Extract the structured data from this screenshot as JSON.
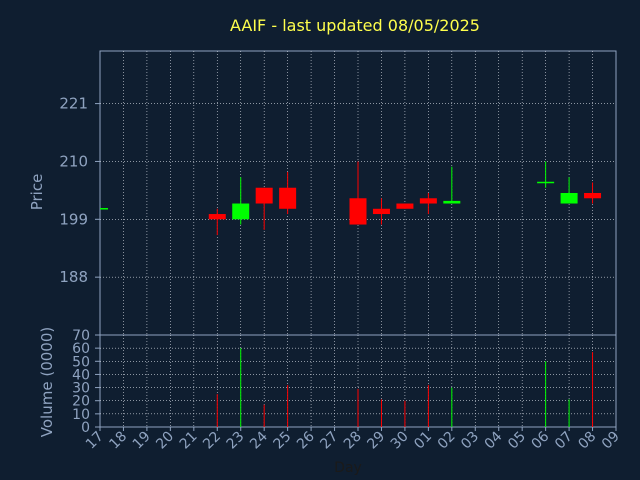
{
  "chart_data": {
    "type": "candlestick",
    "title": "AAIF - last updated 08/05/2025",
    "xlabel": "Day",
    "price_panel": {
      "ylabel": "Price",
      "yticks": [
        188,
        199,
        210,
        221
      ],
      "ylim": [
        177,
        231
      ],
      "grid": true
    },
    "volume_panel": {
      "ylabel": "Volume (0000)",
      "yticks": [
        0,
        10,
        20,
        30,
        40,
        50,
        60,
        70
      ],
      "ylim": [
        0,
        70
      ],
      "grid": true
    },
    "x_tick_labels": [
      "17",
      "18",
      "19",
      "20",
      "21",
      "22",
      "23",
      "24",
      "25",
      "26",
      "27",
      "28",
      "29",
      "30",
      "01",
      "02",
      "03",
      "04",
      "05",
      "06",
      "07",
      "08",
      "09"
    ],
    "colors": {
      "up": "#00ff00",
      "down": "#ff0000",
      "title": "#ffff4d",
      "axis_text": "#8fa3c0",
      "grid": "#d8dde6",
      "background": "#0f1e30"
    },
    "candles": [
      {
        "day": "17",
        "open": 201.0,
        "high": 201.0,
        "low": 201.0,
        "close": 201.0,
        "volume": 0
      },
      {
        "day": "22",
        "open": 200.0,
        "high": 201.0,
        "low": 196.0,
        "close": 199.0,
        "volume": 25
      },
      {
        "day": "23",
        "open": 199.0,
        "high": 207.0,
        "low": 198.0,
        "close": 202.0,
        "volume": 60
      },
      {
        "day": "24",
        "open": 205.0,
        "high": 205.0,
        "low": 197.0,
        "close": 202.0,
        "volume": 17
      },
      {
        "day": "25",
        "open": 205.0,
        "high": 208.0,
        "low": 200.0,
        "close": 201.0,
        "volume": 32
      },
      {
        "day": "28",
        "open": 203.0,
        "high": 210.0,
        "low": 198.0,
        "close": 198.0,
        "volume": 29
      },
      {
        "day": "29",
        "open": 201.0,
        "high": 203.0,
        "low": 198.0,
        "close": 200.0,
        "volume": 21
      },
      {
        "day": "30",
        "open": 202.0,
        "high": 202.0,
        "low": 201.0,
        "close": 201.0,
        "volume": 20
      },
      {
        "day": "01",
        "open": 203.0,
        "high": 204.0,
        "low": 200.0,
        "close": 202.0,
        "volume": 32
      },
      {
        "day": "02",
        "open": 202.0,
        "high": 209.0,
        "low": 202.0,
        "close": 202.5,
        "volume": 30
      },
      {
        "day": "06",
        "open": 206.0,
        "high": 210.0,
        "low": 205.0,
        "close": 206.0,
        "volume": 50
      },
      {
        "day": "07",
        "open": 202.0,
        "high": 207.0,
        "low": 202.0,
        "close": 204.0,
        "volume": 21
      },
      {
        "day": "08",
        "open": 204.0,
        "high": 206.0,
        "low": 202.0,
        "close": 203.0,
        "volume": 57
      }
    ]
  }
}
